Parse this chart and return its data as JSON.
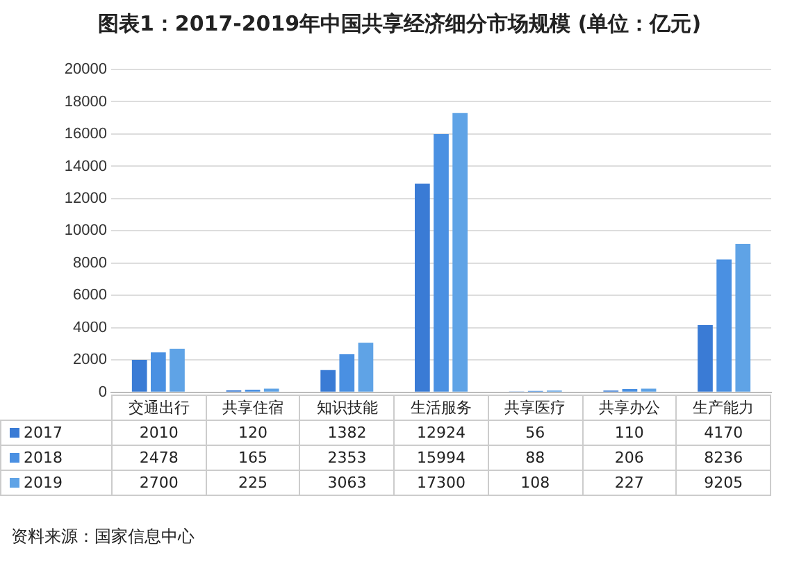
{
  "chart_data": {
    "type": "bar",
    "title": "图表1：2017-2019年中国共享经济细分市场规模 (单位：亿元)",
    "categories": [
      "交通出行",
      "共享住宿",
      "知识技能",
      "生活服务",
      "共享医疗",
      "共享办公",
      "生产能力"
    ],
    "series": [
      {
        "name": "2017",
        "color": "#3a7bd5",
        "values": [
          2010,
          120,
          1382,
          12924,
          56,
          110,
          4170
        ]
      },
      {
        "name": "2018",
        "color": "#4a90e2",
        "values": [
          2478,
          165,
          2353,
          15994,
          88,
          206,
          8236
        ]
      },
      {
        "name": "2019",
        "color": "#5fa3e6",
        "values": [
          2700,
          225,
          3063,
          17300,
          108,
          227,
          9205
        ]
      }
    ],
    "ylim": [
      0,
      20000
    ],
    "yticks": [
      0,
      2000,
      4000,
      6000,
      8000,
      10000,
      12000,
      14000,
      16000,
      18000,
      20000
    ],
    "grid": "y",
    "legend": "bottom",
    "data_labels": true,
    "annotations": [
      "资料来源：国家信息中心"
    ]
  }
}
